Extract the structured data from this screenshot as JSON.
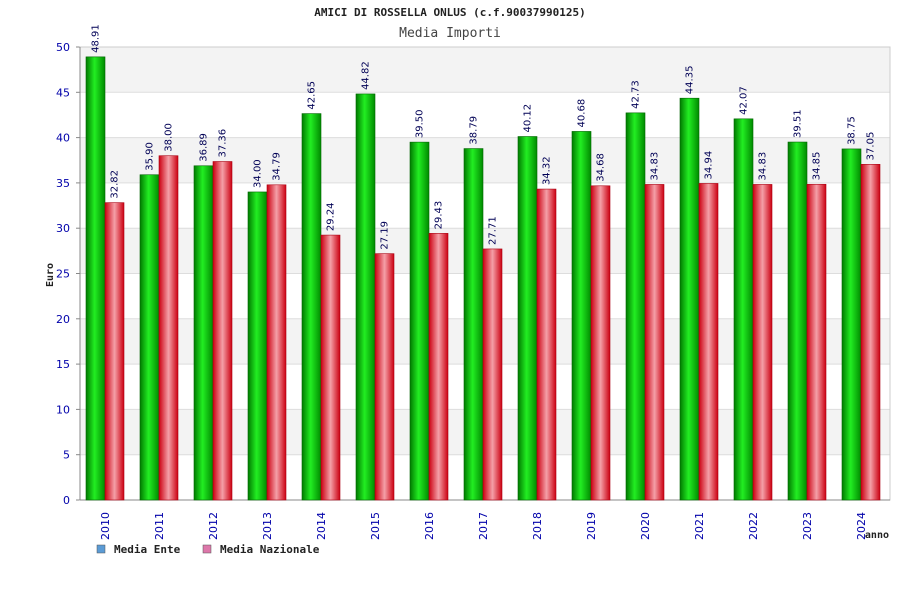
{
  "chart_data": {
    "type": "bar",
    "title": "AMICI DI ROSSELLA ONLUS (c.f.90037990125)",
    "subtitle": "Media Importi",
    "ylabel": "Euro",
    "xlabel": "anno",
    "ylim": [
      0,
      50
    ],
    "yticks": [
      0,
      5,
      10,
      15,
      20,
      25,
      30,
      35,
      40,
      45,
      50
    ],
    "categories": [
      "2010",
      "2011",
      "2012",
      "2013",
      "2014",
      "2015",
      "2016",
      "2017",
      "2018",
      "2019",
      "2020",
      "2021",
      "2022",
      "2023",
      "2024"
    ],
    "series": [
      {
        "name": "Media Ente",
        "color": "#00bb00",
        "legend_color": "#5b9bd5",
        "values": [
          48.91,
          35.9,
          36.89,
          34.0,
          42.65,
          44.82,
          39.5,
          38.79,
          40.12,
          40.68,
          42.73,
          44.35,
          42.07,
          39.51,
          38.75
        ],
        "labels": [
          "48.91",
          "35.90",
          "36.89",
          "34.00",
          "42.65",
          "44.82",
          "39.50",
          "38.79",
          "40.12",
          "40.68",
          "42.73",
          "44.35",
          "42.07",
          "39.51",
          "38.75"
        ]
      },
      {
        "name": "Media Nazionale",
        "color": "#dd2233",
        "legend_color": "#dd77aa",
        "values": [
          32.82,
          38.0,
          37.36,
          34.79,
          29.24,
          27.19,
          29.43,
          27.71,
          34.32,
          34.68,
          34.83,
          34.94,
          34.83,
          34.85,
          37.05
        ],
        "labels": [
          "32.82",
          "38.00",
          "37.36",
          "34.79",
          "29.24",
          "27.19",
          "29.43",
          "27.71",
          "34.32",
          "34.68",
          "34.83",
          "34.94",
          "34.83",
          "34.85",
          "37.05"
        ]
      }
    ],
    "grid": true,
    "legend_position": "bottom-left"
  }
}
